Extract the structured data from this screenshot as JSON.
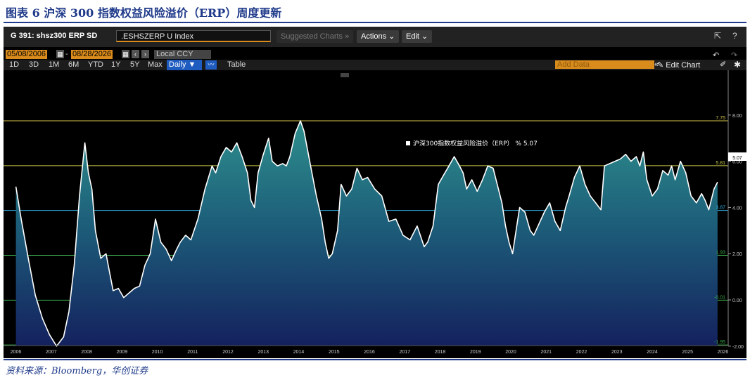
{
  "figure_title": "图表 6 沪深 300 指数权益风险溢价（ERP）周度更新",
  "source": "资料来源：Bloomberg，华创证券",
  "terminal": {
    "ticker": "G 391: shsz300 ERP SD",
    "security": ".ESHSZERP U Index",
    "suggested": "Suggested Charts »",
    "actions": "Actions ⌄",
    "edit": "Edit ⌄",
    "start_date": "05/08/2006",
    "end_date": "08/28/2026",
    "currency": "Local CCY",
    "periods": [
      "1D",
      "3D",
      "1M",
      "6M",
      "YTD",
      "1Y",
      "5Y",
      "Max"
    ],
    "frequency": "Daily ▼",
    "table": "Table",
    "add_data": "Add Data",
    "edit_chart": "Edit Chart",
    "icons": [
      "export-icon",
      "help-icon",
      "undo-icon",
      "redo-icon",
      "pencil-icon",
      "gear-icon",
      "calendar-icon",
      "line-chart-icon"
    ]
  },
  "chart_data": {
    "type": "area",
    "title": "",
    "xlabel": "",
    "ylabel": "",
    "ylim": [
      -3.0,
      8.2
    ],
    "x_ticks": [
      "2006",
      "2007",
      "2008",
      "2009",
      "2010",
      "2011",
      "2012",
      "2013",
      "2014",
      "2015",
      "2016",
      "2017",
      "2018",
      "2019",
      "2020",
      "2021",
      "2022",
      "2023",
      "2024",
      "2025",
      "2026"
    ],
    "y_ticks": [
      "8.00",
      "6.00",
      "4.00",
      "2.00",
      "0.00",
      "-2.00"
    ],
    "y_tick_values": [
      8,
      6,
      4,
      2,
      0,
      -2
    ],
    "reference_lines": [
      {
        "label": "7.75",
        "value": 7.75,
        "color": "#d4c34a"
      },
      {
        "label": "5.81",
        "value": 5.81,
        "color": "#c9c94a"
      },
      {
        "label": "3.87",
        "value": 3.87,
        "color": "#2fa8d8"
      },
      {
        "label": "1.93",
        "value": 1.93,
        "color": "#3aa84a"
      },
      {
        "label": "-0.01",
        "value": -0.01,
        "color": "#3aa84a"
      },
      {
        "label": "-1.95",
        "value": -1.95,
        "color": "#3aa84a"
      }
    ],
    "last_value_label": "5.07",
    "legend": "沪深300指数权益风险溢价（ERP） % 5.07",
    "series": [
      {
        "name": "沪深300指数权益风险溢价（ERP）",
        "x": [
          2006.35,
          2006.5,
          2006.7,
          2006.9,
          2007.1,
          2007.3,
          2007.5,
          2007.7,
          2007.85,
          2008.0,
          2008.15,
          2008.3,
          2008.4,
          2008.5,
          2008.6,
          2008.75,
          2008.9,
          2009.0,
          2009.1,
          2009.25,
          2009.4,
          2009.55,
          2009.7,
          2009.85,
          2010.0,
          2010.15,
          2010.3,
          2010.45,
          2010.6,
          2010.75,
          2010.9,
          2011.0,
          2011.15,
          2011.3,
          2011.5,
          2011.7,
          2011.9,
          2012.0,
          2012.15,
          2012.3,
          2012.45,
          2012.6,
          2012.75,
          2012.9,
          2013.0,
          2013.1,
          2013.2,
          2013.35,
          2013.5,
          2013.6,
          2013.75,
          2013.9,
          2014.0,
          2014.1,
          2014.25,
          2014.4,
          2014.5,
          2014.6,
          2014.75,
          2014.85,
          2015.0,
          2015.1,
          2015.2,
          2015.3,
          2015.45,
          2015.55,
          2015.7,
          2015.85,
          2016.0,
          2016.15,
          2016.3,
          2016.5,
          2016.7,
          2016.9,
          2017.1,
          2017.3,
          2017.5,
          2017.7,
          2017.9,
          2018.0,
          2018.15,
          2018.3,
          2018.45,
          2018.6,
          2018.75,
          2018.9,
          2019.0,
          2019.1,
          2019.25,
          2019.4,
          2019.55,
          2019.7,
          2019.85,
          2020.0,
          2020.1,
          2020.2,
          2020.3,
          2020.4,
          2020.5,
          2020.6,
          2020.75,
          2020.9,
          2021.0,
          2021.15,
          2021.3,
          2021.45,
          2021.6,
          2021.75,
          2021.9,
          2022.0,
          2022.15,
          2022.3,
          2022.45,
          2022.6,
          2022.75,
          2022.9,
          2023.0,
          2023.15,
          2023.3,
          2023.45,
          2023.6,
          2023.75,
          2023.9,
          2024.0,
          2024.1,
          2024.2,
          2024.35,
          2024.5,
          2024.65,
          2024.8,
          2024.9,
          2025.0,
          2025.15,
          2025.3,
          2025.45,
          2025.6,
          2025.75,
          2025.85,
          2025.95,
          2026.1,
          2026.2
        ],
        "values": [
          4.9,
          3.5,
          1.8,
          0.2,
          -0.8,
          -1.5,
          -2.0,
          -1.6,
          -0.5,
          1.5,
          4.5,
          6.8,
          5.5,
          4.8,
          3.0,
          1.8,
          2.0,
          1.2,
          0.4,
          0.5,
          0.1,
          0.3,
          0.5,
          0.6,
          1.5,
          2.0,
          3.5,
          2.5,
          2.2,
          1.7,
          2.2,
          2.5,
          2.8,
          2.6,
          3.5,
          4.8,
          5.8,
          5.5,
          6.2,
          6.6,
          6.4,
          6.8,
          6.2,
          5.5,
          4.3,
          4.0,
          5.5,
          6.3,
          7.0,
          6.0,
          5.8,
          5.9,
          5.8,
          6.2,
          7.2,
          7.75,
          7.3,
          6.5,
          5.3,
          4.5,
          3.5,
          2.5,
          1.8,
          2.0,
          3.0,
          5.0,
          4.5,
          4.8,
          5.7,
          5.2,
          5.3,
          4.8,
          4.5,
          3.4,
          3.5,
          2.8,
          2.6,
          3.2,
          2.3,
          2.5,
          3.2,
          5.0,
          5.4,
          5.8,
          6.2,
          5.8,
          5.5,
          4.8,
          5.2,
          4.7,
          5.2,
          5.8,
          5.7,
          4.8,
          4.2,
          3.2,
          2.5,
          2.0,
          3.0,
          4.0,
          3.8,
          3.0,
          2.8,
          3.3,
          3.8,
          4.2,
          3.4,
          3.0,
          4.0,
          4.5,
          5.3,
          5.8,
          5.0,
          4.5,
          4.2,
          3.9,
          5.8,
          5.9,
          6.0,
          6.1,
          6.3,
          6.0,
          6.2,
          5.8,
          6.4,
          5.2,
          4.5,
          4.8,
          5.6,
          5.4,
          5.8,
          5.2,
          6.0,
          5.5,
          4.5,
          4.2,
          4.6,
          4.3,
          3.9,
          4.8,
          5.1
        ]
      }
    ]
  }
}
